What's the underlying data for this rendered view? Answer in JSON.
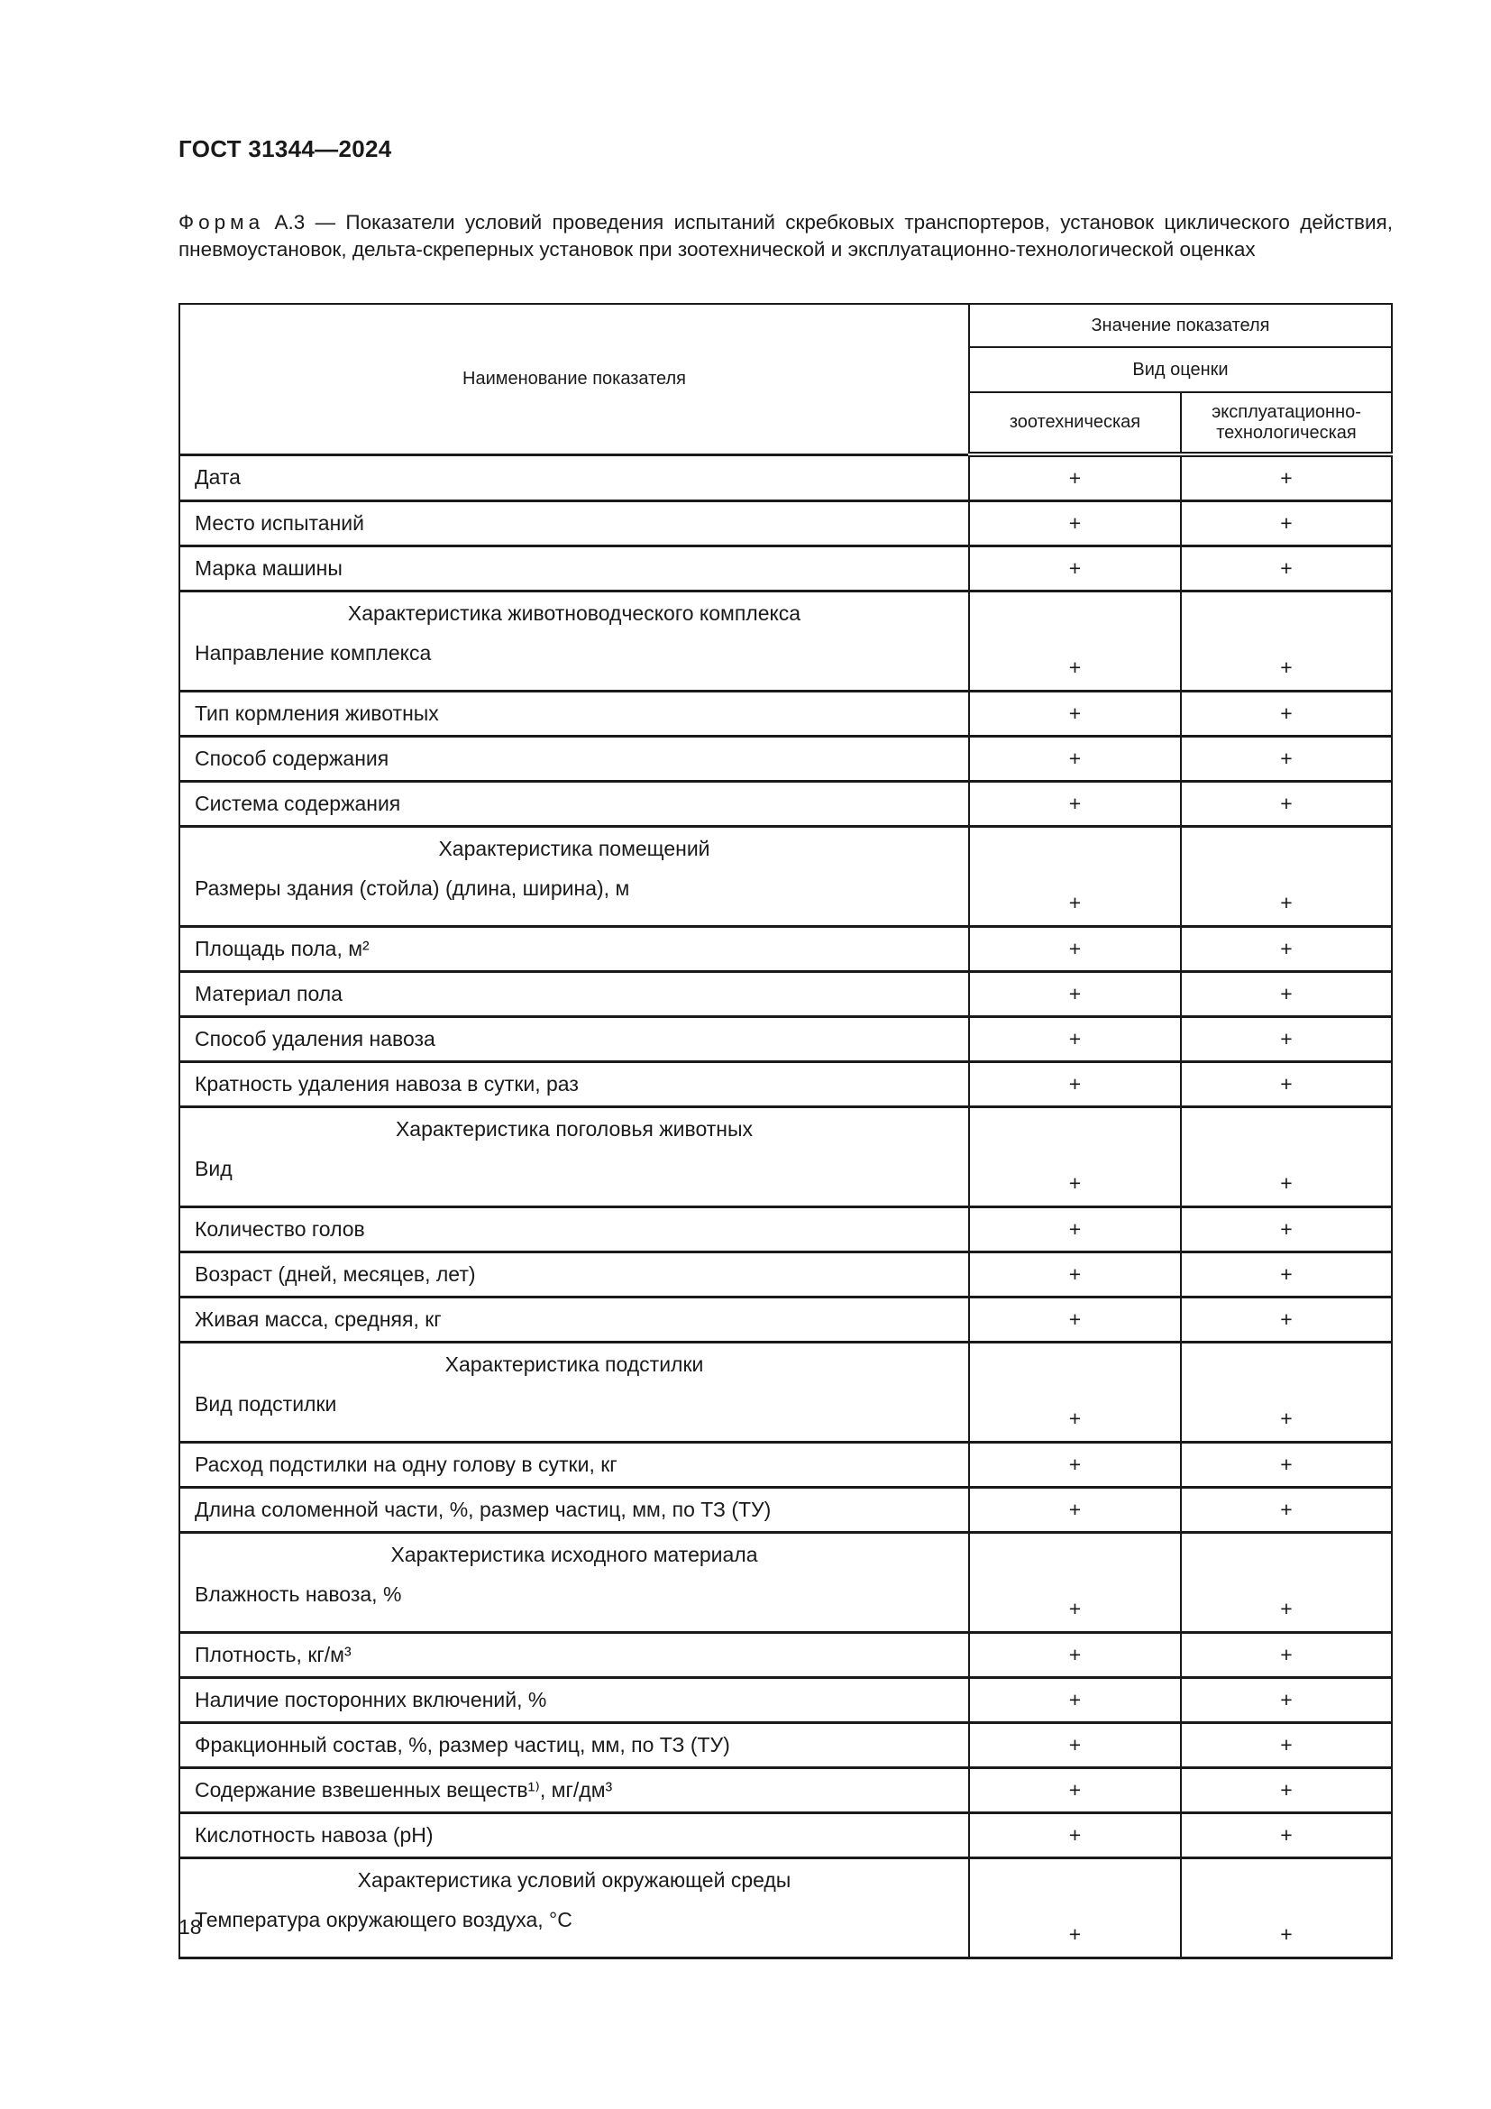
{
  "document_title": "ГОСТ 31344—2024",
  "caption": {
    "prefix": "Форма",
    "text": " А.3 — Показатели условий проведения испытаний скребковых транспортеров, установок циклического действия, пневмоустановок, дельта-скреперных установок при зоотехнической и эксплуатационно-технологической оценках"
  },
  "table": {
    "header": {
      "name_col": "Наименование показателя",
      "value_group": "Значение показателя",
      "assessment_group": "Вид оценки",
      "col_zoo": "зоотехническая",
      "col_exp_line1": "эксплуатационно-",
      "col_exp_line2": "технологическая"
    },
    "rows": [
      {
        "label": "Дата",
        "zoo": "+",
        "exp": "+"
      },
      {
        "label": "Место испытаний",
        "zoo": "+",
        "exp": "+"
      },
      {
        "label": "Марка машины",
        "zoo": "+",
        "exp": "+"
      },
      {
        "section": "Характеристика животноводческого комплекса",
        "label": "Направление комплекса",
        "zoo": "+",
        "exp": "+"
      },
      {
        "label": "Тип кормления животных",
        "zoo": "+",
        "exp": "+"
      },
      {
        "label": "Способ содержания",
        "zoo": "+",
        "exp": "+"
      },
      {
        "label": "Система содержания",
        "zoo": "+",
        "exp": "+"
      },
      {
        "section": "Характеристика помещений",
        "label": "Размеры здания (стойла) (длина, ширина), м",
        "zoo": "+",
        "exp": "+"
      },
      {
        "label": "Площадь пола, м²",
        "zoo": "+",
        "exp": "+"
      },
      {
        "label": "Материал пола",
        "zoo": "+",
        "exp": "+"
      },
      {
        "label": "Способ удаления навоза",
        "zoo": "+",
        "exp": "+"
      },
      {
        "label": "Кратность удаления навоза в сутки, раз",
        "zoo": "+",
        "exp": "+"
      },
      {
        "section": "Характеристика поголовья животных",
        "label": "Вид",
        "zoo": "+",
        "exp": "+"
      },
      {
        "label": "Количество голов",
        "zoo": "+",
        "exp": "+"
      },
      {
        "label": "Возраст (дней, месяцев, лет)",
        "zoo": "+",
        "exp": "+"
      },
      {
        "label": "Живая масса, средняя, кг",
        "zoo": "+",
        "exp": "+"
      },
      {
        "section": "Характеристика подстилки",
        "label": "Вид подстилки",
        "zoo": "+",
        "exp": "+"
      },
      {
        "label": "Расход подстилки на одну голову в сутки, кг",
        "zoo": "+",
        "exp": "+"
      },
      {
        "label": "Длина соломенной части, %, размер частиц, мм, по ТЗ (ТУ)",
        "zoo": "+",
        "exp": "+"
      },
      {
        "section": "Характеристика исходного материала",
        "label": "Влажность навоза, %",
        "zoo": "+",
        "exp": "+"
      },
      {
        "label": "Плотность, кг/м³",
        "zoo": "+",
        "exp": "+"
      },
      {
        "label": "Наличие посторонних включений, %",
        "zoo": "+",
        "exp": "+"
      },
      {
        "label": "Фракционный состав, %, размер частиц, мм, по ТЗ (ТУ)",
        "zoo": "+",
        "exp": "+"
      },
      {
        "label": "Содержание взвешенных веществ¹⁾, мг/дм³",
        "zoo": "+",
        "exp": "+"
      },
      {
        "label": "Кислотность навоза (pH)",
        "zoo": "+",
        "exp": "+"
      },
      {
        "section": "Характеристика условий окружающей среды",
        "label": "Температура окружающего воздуха, °С",
        "zoo": "+",
        "exp": "+"
      }
    ]
  },
  "page_number": "18"
}
